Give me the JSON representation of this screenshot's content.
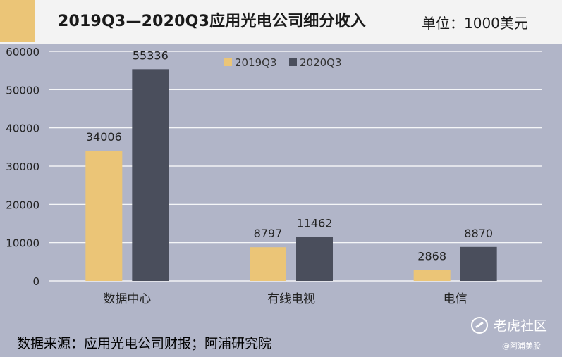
{
  "header": {
    "title": "2019Q3—2020Q3应用光电公司细分收入",
    "unit": "单位：1000美元"
  },
  "source_note": "数据来源：应用光电公司财报；阿浦研究院",
  "watermark": {
    "brand": "老虎社区",
    "account": "@阿浦美股"
  },
  "colors": {
    "series_2019": "#ebc577",
    "series_2020": "#4a4e5c",
    "background": "#b1b5c8",
    "accent": "#ebc577"
  },
  "chart_data": {
    "type": "bar",
    "title": "2019Q3—2020Q3应用光电公司细分收入",
    "xlabel": "",
    "ylabel": "",
    "categories": [
      "数据中心",
      "有线电视",
      "电信"
    ],
    "series": [
      {
        "name": "2019Q3",
        "values": [
          34006,
          8797,
          2868
        ]
      },
      {
        "name": "2020Q3",
        "values": [
          55336,
          11462,
          8870
        ]
      }
    ],
    "ylim": [
      0,
      60000
    ],
    "yticks": [
      0,
      10000,
      20000,
      30000,
      40000,
      50000,
      60000
    ],
    "grid": true,
    "legend": "top-center",
    "data_labels": true
  }
}
